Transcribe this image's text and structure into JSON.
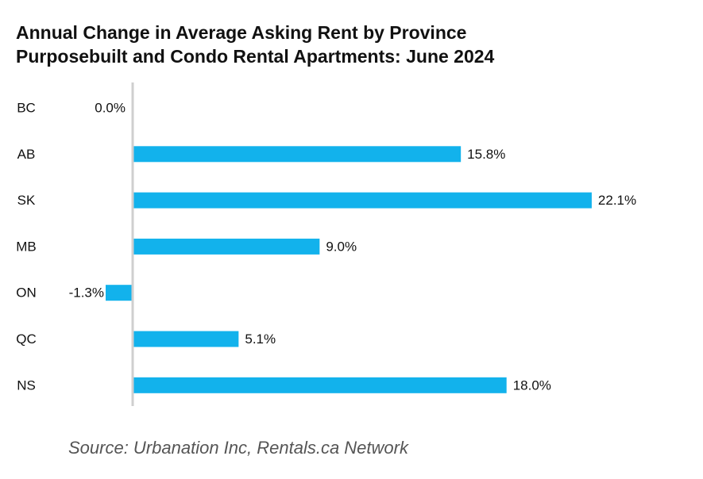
{
  "chart_data": {
    "type": "bar",
    "orientation": "horizontal",
    "title": "Annual Change in Average Asking Rent by Province",
    "subtitle": "Purposebuilt and Condo Rental Apartments: June 2024",
    "categories": [
      "BC",
      "AB",
      "SK",
      "MB",
      "ON",
      "QC",
      "NS"
    ],
    "values": [
      0.0,
      15.8,
      22.1,
      9.0,
      -1.3,
      5.1,
      18.0
    ],
    "data_labels": [
      "0.0%",
      "15.8%",
      "22.1%",
      "9.0%",
      "-1.3%",
      "5.1%",
      "18.0%"
    ],
    "value_unit": "%",
    "xlim": [
      -1.3,
      22.1
    ],
    "grid": false,
    "legend": "none",
    "bar_color": "#12B2EC",
    "axis_color": "#CFCFCF",
    "source": "Source: Urbanation Inc, Rentals.ca Network"
  }
}
